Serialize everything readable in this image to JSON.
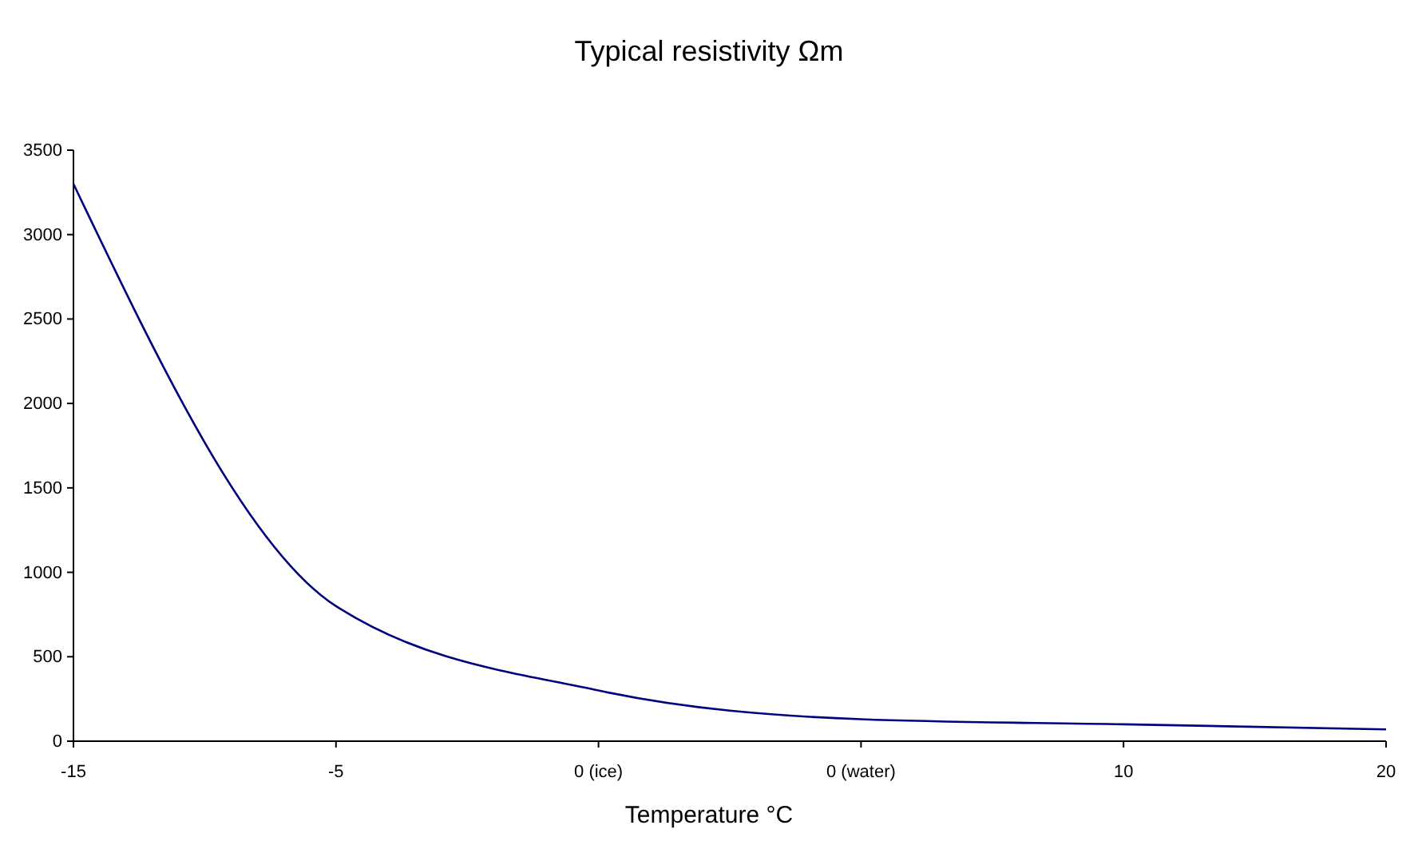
{
  "chart_data": {
    "type": "line",
    "title": "Typical resistivity Ωm",
    "xlabel": "Temperature °C",
    "categories": [
      "-15",
      "-5",
      "0 (ice)",
      "0 (water)",
      "10",
      "20"
    ],
    "series": [
      {
        "color": "#000080",
        "values": [
          3300,
          800,
          300,
          130,
          100,
          70
        ]
      }
    ],
    "ylim": [
      0,
      3500
    ],
    "yticks": [
      0,
      500,
      1000,
      1500,
      2000,
      2500,
      3000,
      3500
    ],
    "marker": "none",
    "line_style": "solid"
  }
}
